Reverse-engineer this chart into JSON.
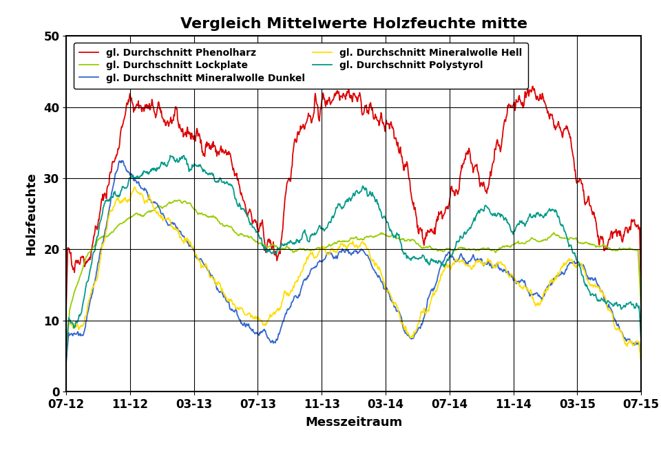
{
  "title": "Vergleich Mittelwerte Holzfeuchte mitte",
  "xlabel": "Messzeitraum",
  "ylabel": "Holzfeuchte",
  "ylim": [
    0,
    50
  ],
  "yticks": [
    0,
    10,
    20,
    30,
    40,
    50
  ],
  "xtick_labels": [
    "07-12",
    "11-12",
    "03-13",
    "07-13",
    "11-13",
    "03-14",
    "07-14",
    "11-14",
    "03-15",
    "07-15"
  ],
  "series": [
    {
      "label": "gl. Durchschnitt Phenolharz",
      "color": "#dd0000",
      "linewidth": 1.3
    },
    {
      "label": "gl. Durchschnitt Lockplate",
      "color": "#99cc00",
      "linewidth": 1.3
    },
    {
      "label": "gl. Durchschnitt Mineralwolle Dunkel",
      "color": "#3366cc",
      "linewidth": 1.3
    },
    {
      "label": "gl. Durchschnitt Mineralwolle Hell",
      "color": "#ffdd00",
      "linewidth": 1.3
    },
    {
      "label": "gl. Durchschnitt Polystyrol",
      "color": "#009988",
      "linewidth": 1.3
    }
  ],
  "n_points": 1100,
  "background_color": "#ffffff",
  "title_fontsize": 16,
  "label_fontsize": 13,
  "tick_fontsize": 12,
  "legend_fontsize": 10
}
